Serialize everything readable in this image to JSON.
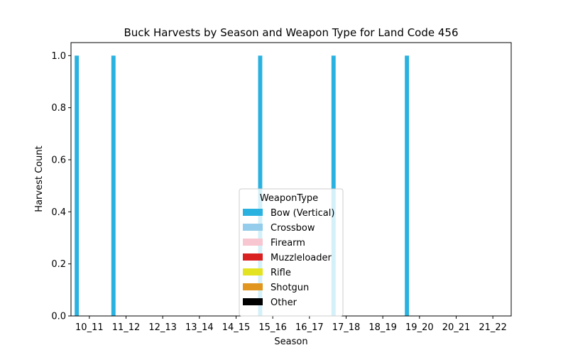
{
  "chart_data": {
    "type": "bar",
    "title": "Buck Harvests by Season and Weapon Type for Land Code 456",
    "xlabel": "Season",
    "ylabel": "Harvest Count",
    "ylim": [
      0,
      1.05
    ],
    "yticks": [
      "0.0",
      "0.2",
      "0.4",
      "0.6",
      "0.8",
      "1.0"
    ],
    "categories": [
      "10_11",
      "11_12",
      "12_13",
      "13_14",
      "14_15",
      "15_16",
      "16_17",
      "17_18",
      "18_19",
      "19_20",
      "20_21",
      "21_22"
    ],
    "series": [
      {
        "name": "Bow (Vertical)",
        "color": "#29b2e0",
        "values": [
          1,
          1,
          0,
          0,
          0,
          1,
          0,
          1,
          0,
          1,
          0,
          0
        ]
      },
      {
        "name": "Crossbow",
        "color": "#94cdec",
        "values": [
          0,
          0,
          0,
          0,
          0,
          0,
          0,
          0,
          0,
          0,
          0,
          0
        ]
      },
      {
        "name": "Firearm",
        "color": "#f8c6d0",
        "values": [
          0,
          0,
          0,
          0,
          0,
          0,
          0,
          0,
          0,
          0,
          0,
          0
        ]
      },
      {
        "name": "Muzzleloader",
        "color": "#d92121",
        "values": [
          0,
          0,
          0,
          0,
          0,
          0,
          0,
          0,
          0,
          0,
          0,
          0
        ]
      },
      {
        "name": "Rifle",
        "color": "#e3e321",
        "values": [
          0,
          0,
          0,
          0,
          0,
          0,
          0,
          0,
          0,
          0,
          0,
          0
        ]
      },
      {
        "name": "Shotgun",
        "color": "#e0961f",
        "values": [
          0,
          0,
          0,
          0,
          0,
          0,
          0,
          0,
          0,
          0,
          0,
          0
        ]
      },
      {
        "name": "Other",
        "color": "#000000",
        "values": [
          0,
          0,
          0,
          0,
          0,
          0,
          0,
          0,
          0,
          0,
          0,
          0
        ]
      }
    ],
    "legend": {
      "title": "WeaponType",
      "position": "lower-center"
    },
    "grid": false
  }
}
